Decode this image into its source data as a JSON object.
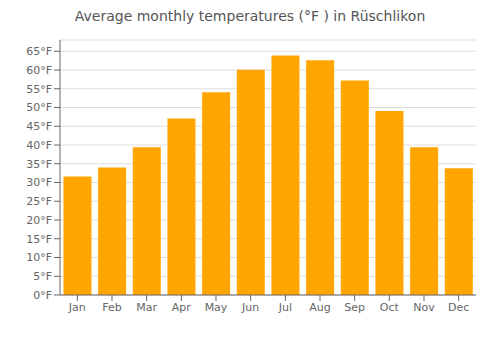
{
  "chart_data": {
    "type": "bar",
    "title": "Average monthly temperatures (°F ) in Rüschlikon",
    "categories": [
      "Jan",
      "Feb",
      "Mar",
      "Apr",
      "May",
      "Jun",
      "Jul",
      "Aug",
      "Sep",
      "Oct",
      "Nov",
      "Dec"
    ],
    "values": [
      31.6,
      34.0,
      39.4,
      47.1,
      54.1,
      60.1,
      63.9,
      62.6,
      57.2,
      49.1,
      39.4,
      33.8
    ],
    "color": "#FFA500",
    "ylim": [
      0,
      68
    ],
    "yticks": [
      {
        "value": 0,
        "label": "0°F"
      },
      {
        "value": 5,
        "label": "5°F"
      },
      {
        "value": 10,
        "label": "10°F"
      },
      {
        "value": 15,
        "label": "15°F"
      },
      {
        "value": 20,
        "label": "20°F"
      },
      {
        "value": 25,
        "label": "25°F"
      },
      {
        "value": 30,
        "label": "30°F"
      },
      {
        "value": 35,
        "label": "35°F"
      },
      {
        "value": 40,
        "label": "40°F"
      },
      {
        "value": 45,
        "label": "45°F"
      },
      {
        "value": 50,
        "label": "50°F"
      },
      {
        "value": 55,
        "label": "55°F"
      },
      {
        "value": 60,
        "label": "60°F"
      },
      {
        "value": 65,
        "label": "65°F"
      }
    ],
    "grid": true
  }
}
